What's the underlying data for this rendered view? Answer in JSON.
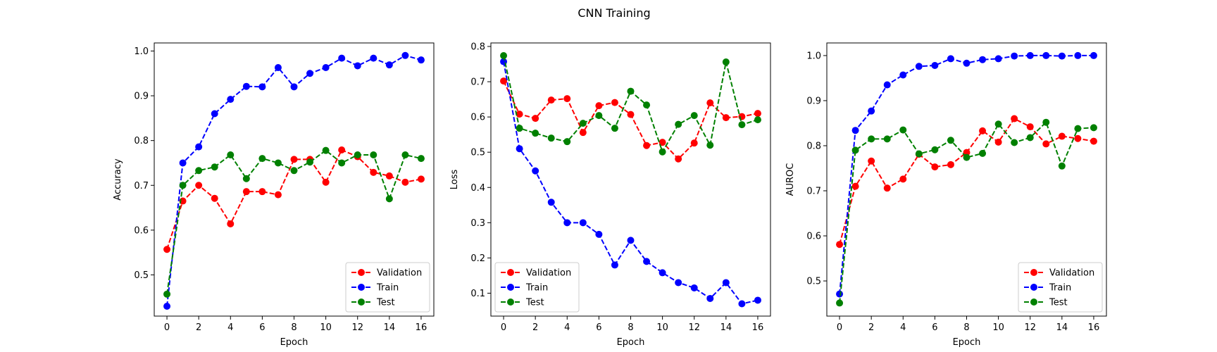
{
  "figure": {
    "title": "CNN Training"
  },
  "chart_data": [
    {
      "type": "line",
      "xlabel": "Epoch",
      "ylabel": "Accuracy",
      "xlim": [
        -0.8,
        16.8
      ],
      "ylim": [
        0.408,
        1.018
      ],
      "xticks": [
        0,
        2,
        4,
        6,
        8,
        10,
        12,
        14,
        16
      ],
      "xtick_labels": [
        "0",
        "2",
        "4",
        "6",
        "8",
        "10",
        "12",
        "14",
        "16"
      ],
      "yticks": [
        0.5,
        0.6,
        0.7,
        0.8,
        0.9,
        1.0
      ],
      "ytick_labels": [
        "0.5",
        "0.6",
        "0.7",
        "0.8",
        "0.9",
        "1.0"
      ],
      "legend_position": "lower-right",
      "grid": false,
      "x": [
        0,
        1,
        2,
        3,
        4,
        5,
        6,
        7,
        8,
        9,
        10,
        11,
        12,
        13,
        14,
        15,
        16
      ],
      "series": [
        {
          "name": "Validation",
          "color": "#ff0000",
          "values": [
            0.557,
            0.665,
            0.7,
            0.671,
            0.614,
            0.686,
            0.686,
            0.679,
            0.758,
            0.758,
            0.707,
            0.779,
            0.764,
            0.729,
            0.721,
            0.707,
            0.714
          ]
        },
        {
          "name": "Train",
          "color": "#0000ff",
          "values": [
            0.43,
            0.75,
            0.786,
            0.86,
            0.892,
            0.921,
            0.92,
            0.963,
            0.92,
            0.95,
            0.963,
            0.984,
            0.967,
            0.984,
            0.969,
            0.99,
            0.98
          ]
        },
        {
          "name": "Test",
          "color": "#008000",
          "values": [
            0.457,
            0.7,
            0.733,
            0.741,
            0.768,
            0.715,
            0.76,
            0.75,
            0.733,
            0.752,
            0.778,
            0.75,
            0.768,
            0.768,
            0.67,
            0.768,
            0.76
          ]
        }
      ]
    },
    {
      "type": "line",
      "xlabel": "Epoch",
      "ylabel": "Loss",
      "xlim": [
        -0.8,
        16.8
      ],
      "ylim": [
        0.035,
        0.81
      ],
      "xticks": [
        0,
        2,
        4,
        6,
        8,
        10,
        12,
        14,
        16
      ],
      "xtick_labels": [
        "0",
        "2",
        "4",
        "6",
        "8",
        "10",
        "12",
        "14",
        "16"
      ],
      "yticks": [
        0.1,
        0.2,
        0.3,
        0.4,
        0.5,
        0.6,
        0.7,
        0.8
      ],
      "ytick_labels": [
        "0.1",
        "0.2",
        "0.3",
        "0.4",
        "0.5",
        "0.6",
        "0.7",
        "0.8"
      ],
      "legend_position": "lower-left",
      "grid": false,
      "x": [
        0,
        1,
        2,
        3,
        4,
        5,
        6,
        7,
        8,
        9,
        10,
        11,
        12,
        13,
        14,
        15,
        16
      ],
      "series": [
        {
          "name": "Validation",
          "color": "#ff0000",
          "values": [
            0.702,
            0.608,
            0.596,
            0.648,
            0.652,
            0.556,
            0.632,
            0.641,
            0.607,
            0.519,
            0.528,
            0.481,
            0.526,
            0.64,
            0.598,
            0.601,
            0.61
          ]
        },
        {
          "name": "Train",
          "color": "#0000ff",
          "values": [
            0.757,
            0.51,
            0.447,
            0.358,
            0.3,
            0.3,
            0.267,
            0.18,
            0.25,
            0.19,
            0.158,
            0.13,
            0.115,
            0.085,
            0.13,
            0.07,
            0.08
          ]
        },
        {
          "name": "Test",
          "color": "#008000",
          "values": [
            0.774,
            0.568,
            0.554,
            0.54,
            0.53,
            0.582,
            0.604,
            0.568,
            0.673,
            0.634,
            0.501,
            0.579,
            0.604,
            0.52,
            0.756,
            0.578,
            0.592
          ]
        }
      ]
    },
    {
      "type": "line",
      "xlabel": "Epoch",
      "ylabel": "AUROC",
      "xlim": [
        -0.8,
        16.8
      ],
      "ylim": [
        0.422,
        1.028
      ],
      "xticks": [
        0,
        2,
        4,
        6,
        8,
        10,
        12,
        14,
        16
      ],
      "xtick_labels": [
        "0",
        "2",
        "4",
        "6",
        "8",
        "10",
        "12",
        "14",
        "16"
      ],
      "yticks": [
        0.5,
        0.6,
        0.7,
        0.8,
        0.9,
        1.0
      ],
      "ytick_labels": [
        "0.5",
        "0.6",
        "0.7",
        "0.8",
        "0.9",
        "1.0"
      ],
      "legend_position": "lower-right",
      "grid": false,
      "x": [
        0,
        1,
        2,
        3,
        4,
        5,
        6,
        7,
        8,
        9,
        10,
        11,
        12,
        13,
        14,
        15,
        16
      ],
      "series": [
        {
          "name": "Validation",
          "color": "#ff0000",
          "values": [
            0.581,
            0.71,
            0.766,
            0.706,
            0.726,
            0.781,
            0.753,
            0.758,
            0.785,
            0.833,
            0.808,
            0.86,
            0.842,
            0.804,
            0.821,
            0.816,
            0.81
          ]
        },
        {
          "name": "Train",
          "color": "#0000ff",
          "values": [
            0.471,
            0.834,
            0.877,
            0.935,
            0.957,
            0.976,
            0.978,
            0.993,
            0.983,
            0.991,
            0.993,
            0.999,
            1.0,
            1.0,
            0.999,
            1.0,
            1.0
          ]
        },
        {
          "name": "Test",
          "color": "#008000",
          "values": [
            0.451,
            0.79,
            0.815,
            0.815,
            0.835,
            0.782,
            0.791,
            0.812,
            0.774,
            0.783,
            0.848,
            0.807,
            0.818,
            0.852,
            0.755,
            0.838,
            0.84
          ]
        }
      ]
    }
  ]
}
